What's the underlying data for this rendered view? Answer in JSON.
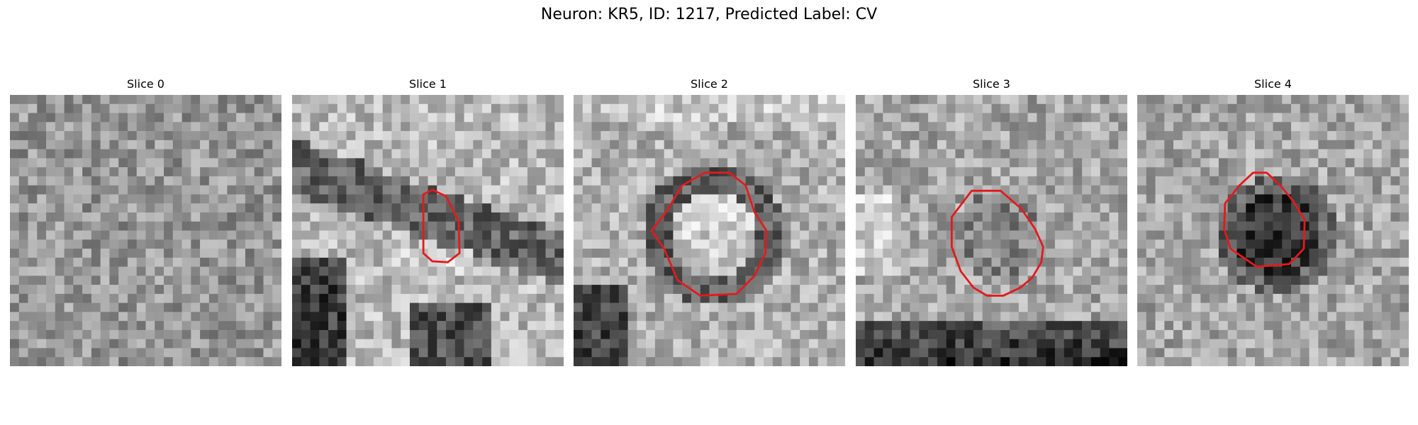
{
  "figure": {
    "suptitle": "Neuron: KR5, ID: 1217, Predicted Label: CV",
    "panels": [
      {
        "title": "Slice 0",
        "contour": false,
        "seed": 11,
        "feature": "none"
      },
      {
        "title": "Slice 1",
        "contour": true,
        "seed": 23,
        "feature": "stripe"
      },
      {
        "title": "Slice 2",
        "contour": true,
        "seed": 37,
        "feature": "ring"
      },
      {
        "title": "Slice 3",
        "contour": true,
        "seed": 41,
        "feature": "soft"
      },
      {
        "title": "Slice 4",
        "contour": true,
        "seed": 53,
        "feature": "dark"
      }
    ],
    "colors": {
      "contour": "#e31a1c",
      "colormap": "gray"
    },
    "grid_size": 30
  }
}
